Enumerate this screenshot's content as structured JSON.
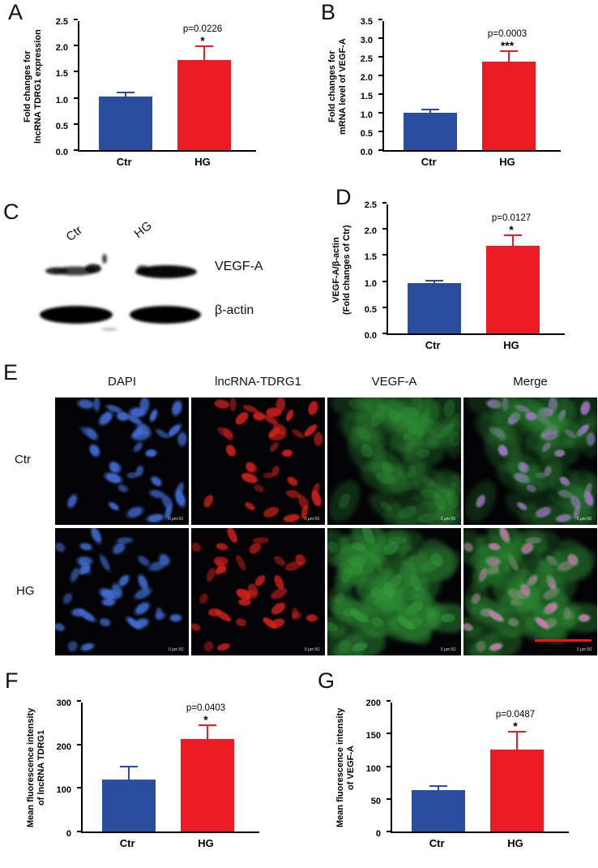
{
  "colors": {
    "ctr_bar": "#2b4da0",
    "hg_bar": "#ed1b24",
    "axis": "#000000",
    "scale_bar": "#ff1111"
  },
  "panels": {
    "A": {
      "label": "A"
    },
    "B": {
      "label": "B"
    },
    "C": {
      "label": "C",
      "lanes": [
        "Ctr",
        "HG"
      ],
      "bands": [
        "VEGF-A",
        "β-actin"
      ]
    },
    "D": {
      "label": "D"
    },
    "E": {
      "label": "E",
      "columns": [
        "DAPI",
        "lncRNA-TDRG1",
        "VEGF-A",
        "Merge"
      ],
      "rows": [
        "Ctr",
        "HG"
      ],
      "scale_text": "0   µm   50"
    },
    "F": {
      "label": "F"
    },
    "G": {
      "label": "G"
    }
  },
  "chart_data": [
    {
      "id": "A",
      "type": "bar",
      "categories": [
        "Ctr",
        "HG"
      ],
      "values": [
        1.02,
        1.72
      ],
      "errors": [
        0.07,
        0.26
      ],
      "ylabel": [
        "Fold changes for",
        "lncRNA TDRG1 expression"
      ],
      "ylim": [
        0,
        2.5
      ],
      "yticks": [
        "0.0",
        "0.5",
        "1.0",
        "1.5",
        "2.0",
        "2.5"
      ],
      "p_value": "p=0.0226",
      "significance": "*",
      "legend": "none",
      "grid": false
    },
    {
      "id": "B",
      "type": "bar",
      "categories": [
        "Ctr",
        "HG"
      ],
      "values": [
        1.0,
        2.37
      ],
      "errors": [
        0.06,
        0.25
      ],
      "ylabel": [
        "Fold changes for",
        "mRNA level of VEGF-A"
      ],
      "ylim": [
        0,
        3.5
      ],
      "yticks": [
        "0.0",
        "0.5",
        "1.0",
        "1.5",
        "2.0",
        "2.5",
        "3.0",
        "3.5"
      ],
      "p_value": "p=0.0003",
      "significance": "***",
      "legend": "none",
      "grid": false
    },
    {
      "id": "D",
      "type": "bar",
      "categories": [
        "Ctr",
        "HG"
      ],
      "values": [
        0.97,
        1.67
      ],
      "errors": [
        0.03,
        0.2
      ],
      "ylabel": [
        "VEGF-A/β-actin",
        "(Fold changes of Ctr)"
      ],
      "ylim": [
        0,
        2.5
      ],
      "yticks": [
        "0.0",
        "0.5",
        "1.0",
        "1.5",
        "2.0",
        "2.5"
      ],
      "p_value": "p=0.0127",
      "significance": "*",
      "legend": "none",
      "grid": false
    },
    {
      "id": "F",
      "type": "bar",
      "categories": [
        "Ctr",
        "HG"
      ],
      "values": [
        120,
        212
      ],
      "errors": [
        28,
        31
      ],
      "ylabel": [
        "Mean fluorescence intensity",
        "of lncRNA TDRG1"
      ],
      "ylim": [
        0,
        300
      ],
      "yticks": [
        "0",
        "100",
        "200",
        "300"
      ],
      "p_value": "p=0.0403",
      "significance": "*",
      "legend": "none",
      "grid": false
    },
    {
      "id": "G",
      "type": "bar",
      "categories": [
        "Ctr",
        "HG"
      ],
      "values": [
        63,
        125
      ],
      "errors": [
        5,
        27
      ],
      "ylabel": [
        "Mean fluorescence intensity",
        "of VEGF-A"
      ],
      "ylim": [
        0,
        200
      ],
      "yticks": [
        "0",
        "50",
        "100",
        "150",
        "200"
      ],
      "p_value": "p=0.0487",
      "significance": "*",
      "legend": "none",
      "grid": false
    }
  ]
}
